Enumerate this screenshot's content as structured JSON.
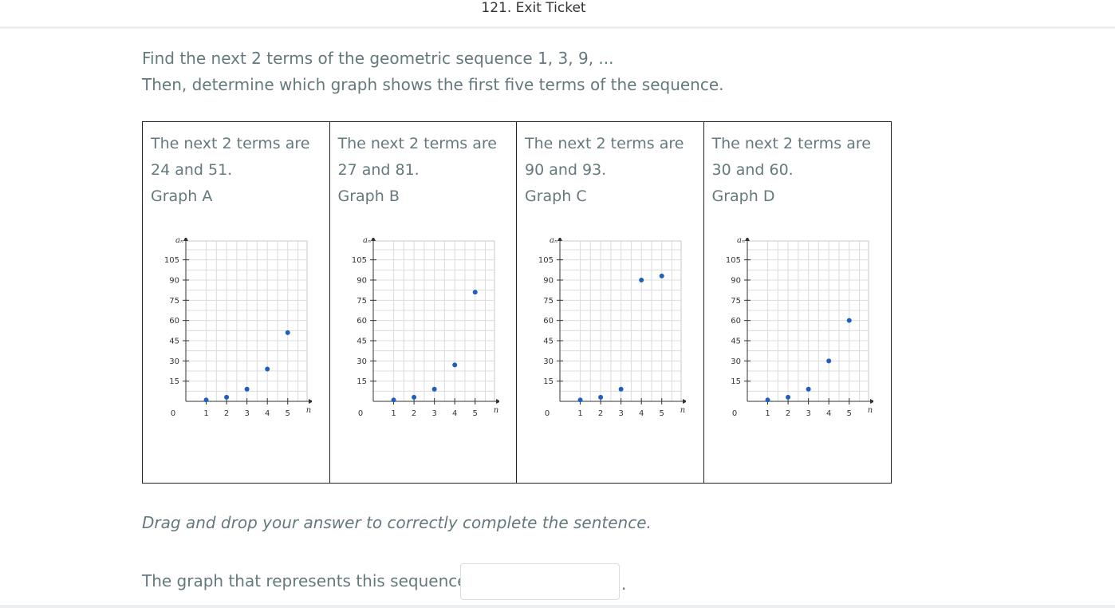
{
  "header": {
    "title": "121. Exit Ticket"
  },
  "prompt": {
    "line1": "Find the next 2 terms of the geometric sequence 1, 3, 9, ...",
    "line2": "Then, determine which graph shows the first five terms of the sequence."
  },
  "choices": [
    {
      "line1": "The next 2 terms are",
      "line2": "24 and 51.",
      "label": "Graph A"
    },
    {
      "line1": "The next 2 terms are",
      "line2": "27 and 81.",
      "label": "Graph B"
    },
    {
      "line1": "The next 2 terms are",
      "line2": "90 and 93.",
      "label": "Graph C"
    },
    {
      "line1": "The next 2 terms are",
      "line2": "30 and 60.",
      "label": "Graph D"
    }
  ],
  "chart_data": [
    {
      "type": "scatter",
      "xlabel": "n",
      "ylabel": "aₙ",
      "x": [
        1,
        2,
        3,
        4,
        5
      ],
      "y": [
        1,
        3,
        9,
        24,
        51
      ],
      "xlim": [
        0,
        5
      ],
      "ylim": [
        0,
        105
      ],
      "xticks": [
        1,
        2,
        3,
        4,
        5
      ],
      "yticks": [
        15,
        30,
        45,
        60,
        75,
        90,
        105
      ],
      "grid": true,
      "color": "#1f5fbf"
    },
    {
      "type": "scatter",
      "xlabel": "n",
      "ylabel": "aₙ",
      "x": [
        1,
        2,
        3,
        4,
        5
      ],
      "y": [
        1,
        3,
        9,
        27,
        81
      ],
      "xlim": [
        0,
        5
      ],
      "ylim": [
        0,
        105
      ],
      "xticks": [
        1,
        2,
        3,
        4,
        5
      ],
      "yticks": [
        15,
        30,
        45,
        60,
        75,
        90,
        105
      ],
      "grid": true,
      "color": "#1f5fbf"
    },
    {
      "type": "scatter",
      "xlabel": "n",
      "ylabel": "aₙ",
      "x": [
        1,
        2,
        3,
        4,
        5
      ],
      "y": [
        1,
        3,
        9,
        90,
        93
      ],
      "xlim": [
        0,
        5
      ],
      "ylim": [
        0,
        105
      ],
      "xticks": [
        1,
        2,
        3,
        4,
        5
      ],
      "yticks": [
        15,
        30,
        45,
        60,
        75,
        90,
        105
      ],
      "grid": true,
      "color": "#1f5fbf"
    },
    {
      "type": "scatter",
      "xlabel": "n",
      "ylabel": "aₙ",
      "x": [
        1,
        2,
        3,
        4,
        5
      ],
      "y": [
        1,
        3,
        9,
        30,
        60
      ],
      "xlim": [
        0,
        5
      ],
      "ylim": [
        0,
        105
      ],
      "xticks": [
        1,
        2,
        3,
        4,
        5
      ],
      "yticks": [
        15,
        30,
        45,
        60,
        75,
        90,
        105
      ],
      "grid": true,
      "color": "#1f5fbf"
    }
  ],
  "axis_origin_label": "0",
  "instruction": "Drag and drop your answer to correctly complete the sentence.",
  "sentence": {
    "text": "The graph that represents this sequence is",
    "answer": "",
    "end": "."
  }
}
